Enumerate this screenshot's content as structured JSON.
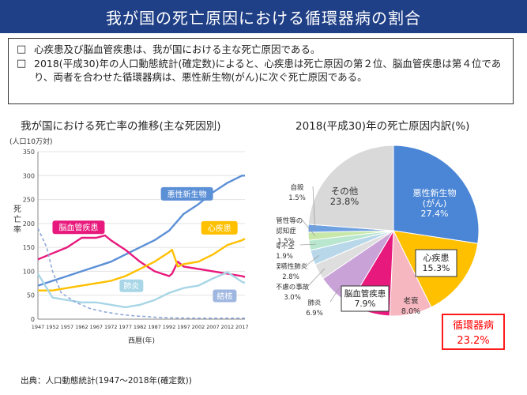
{
  "header": {
    "title": "我が国の死亡原因における循環器病の割合"
  },
  "notes": [
    {
      "bullet": "□",
      "text": "心疾患及び脳血管疾患は、我が国における主な死亡原因である。"
    },
    {
      "bullet": "□",
      "text": "2018(平成30)年の人口動態統計(確定数)によると、心疾患は死亡原因の第２位、脳血管疾患は第４位であり、両者を合わせた循環器病は、悪性新生物(がん)に次ぐ死亡原因である。"
    }
  ],
  "source": "出典：人口動態統計(1947～2018年(確定数))",
  "chart_data": [
    {
      "type": "line",
      "title": "我が国における死亡率の推移(主な死因別)",
      "unit_label": "(人口10万対)",
      "xlabel": "西暦(年)",
      "ylabel": "死亡率",
      "ylim": [
        0,
        350
      ],
      "y_ticks": [
        "0",
        "50",
        "100",
        "150",
        "200",
        "250",
        "300",
        "350"
      ],
      "x_ticks": [
        "1947",
        "1952",
        "1957",
        "1962",
        "1967",
        "1972",
        "1977",
        "1982",
        "1987",
        "1992",
        "1997",
        "2002",
        "2007",
        "2012",
        "2017"
      ],
      "grid": true,
      "series": [
        {
          "name": "悪性新生物",
          "color": "#5b8fd6",
          "x": [
            1947,
            1952,
            1957,
            1962,
            1967,
            1972,
            1977,
            1982,
            1987,
            1992,
            1997,
            2002,
            2007,
            2012,
            2017,
            2018
          ],
          "y": [
            70,
            80,
            90,
            100,
            110,
            120,
            135,
            150,
            165,
            185,
            220,
            240,
            265,
            285,
            300,
            300
          ]
        },
        {
          "name": "脳血管疾患",
          "color": "#e8197c",
          "x": [
            1947,
            1951,
            1957,
            1962,
            1967,
            1970,
            1972,
            1977,
            1982,
            1987,
            1992,
            1993,
            1995,
            1997,
            2002,
            2007,
            2012,
            2017,
            2018
          ],
          "y": [
            125,
            135,
            150,
            170,
            170,
            175,
            165,
            145,
            120,
            100,
            90,
            95,
            120,
            110,
            105,
            100,
            95,
            90,
            88
          ]
        },
        {
          "name": "心疾患",
          "color": "#ffc000",
          "x": [
            1947,
            1952,
            1957,
            1962,
            1967,
            1972,
            1977,
            1982,
            1987,
            1992,
            1993,
            1995,
            1997,
            2002,
            2007,
            2012,
            2017,
            2018
          ],
          "y": [
            60,
            60,
            65,
            70,
            75,
            80,
            90,
            105,
            120,
            140,
            145,
            110,
            115,
            120,
            135,
            155,
            165,
            168
          ]
        },
        {
          "name": "肺炎",
          "color": "#a8d6e6",
          "x": [
            1947,
            1952,
            1957,
            1962,
            1967,
            1972,
            1977,
            1982,
            1987,
            1992,
            1997,
            2002,
            2007,
            2012,
            2017,
            2018
          ],
          "y": [
            95,
            45,
            40,
            35,
            35,
            30,
            25,
            30,
            40,
            55,
            65,
            70,
            85,
            98,
            78,
            76
          ]
        },
        {
          "name": "結核",
          "color": "#8fa8d8",
          "dashed": true,
          "x": [
            1947,
            1950,
            1952,
            1955,
            1960,
            1965,
            1970,
            1975,
            1980,
            1990,
            2000,
            2018
          ],
          "y": [
            190,
            150,
            100,
            55,
            35,
            22,
            15,
            10,
            7,
            3,
            2,
            2
          ]
        }
      ]
    },
    {
      "type": "pie",
      "title": "2018(平成30)年の死亡原因内訳(%)",
      "slices": [
        {
          "name": "悪性新生物\n(がん)",
          "value": 27.4,
          "label": "27.4%",
          "color": "#4b86d6"
        },
        {
          "name": "心疾患",
          "value": 15.3,
          "label": "15.3%",
          "color": "#ffc000"
        },
        {
          "name": "老衰",
          "value": 8.0,
          "label": "8.0%",
          "color": "#f7b7c0"
        },
        {
          "name": "脳血管疾患",
          "value": 7.9,
          "label": "7.9%",
          "color": "#e8197c"
        },
        {
          "name": "肺炎",
          "value": 6.9,
          "label": "6.9%",
          "color": "#c9a2d8"
        },
        {
          "name": "不慮の事故",
          "value": 3.0,
          "label": "3.0%",
          "color": "#dedede"
        },
        {
          "name": "誤嚥性肺炎",
          "value": 2.8,
          "label": "2.8%",
          "color": "#b8d8ea"
        },
        {
          "name": "腎不全",
          "value": 1.9,
          "label": "1.9%",
          "color": "#b9e6cf"
        },
        {
          "name": "血管性等の\n認知症",
          "value": 1.5,
          "label": "1.5%",
          "color": "#c7e8a8"
        },
        {
          "name": "自殺",
          "value": 1.5,
          "label": "1.5%",
          "color": "#6fa1e0"
        },
        {
          "name": "その他",
          "value": 23.8,
          "label": "23.8%",
          "color": "#d9d9d9"
        }
      ],
      "callout": {
        "label": "循環器病",
        "value": "23.2%",
        "color": "#ff0000"
      }
    }
  ]
}
